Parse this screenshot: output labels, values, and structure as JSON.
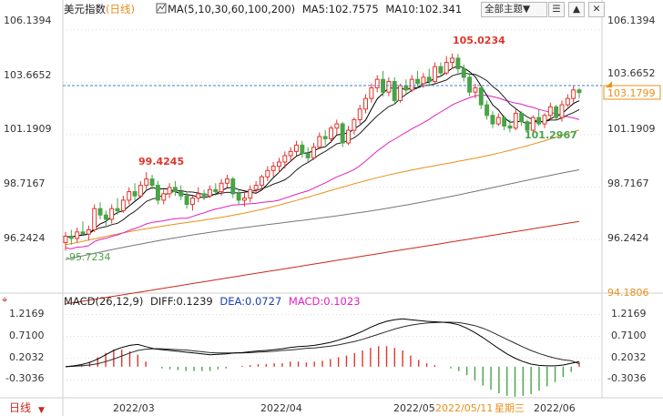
{
  "header": {
    "title": "美元指数",
    "period": "(日线)",
    "ma_label": "MA(5,10,30,60,100,200)",
    "ma5_label": "MA5:102.7575",
    "ma10_label": "MA10:102.341",
    "theme_select": "全部主题▼",
    "icon_list": "list-icon",
    "icon_collapse": "collapse-icon",
    "icon_close": "close-icon"
  },
  "macd_header": {
    "params": "MACD(26,12,9)",
    "diff": "DIFF:0.1239",
    "dea": "DEA:0.0727",
    "macd": "MACD:0.1023"
  },
  "tooltip": {
    "date": "2022/05/11",
    "weekday": "星期三"
  },
  "bottom_left_label": "日线",
  "price_tag": "103.1799",
  "colors": {
    "up": "#e0352b",
    "down": "#47a447",
    "ma5": "#000000",
    "ma10": "#1f1f1f",
    "ma30": "#e020c0",
    "ma60": "#e8901a",
    "ma100": "#777777",
    "ma200": "#c8281e",
    "diff": "#000000",
    "dea": "#2a2a2a",
    "grid": "#d8d8d8"
  },
  "chart_data": [
    {
      "type": "candlestick",
      "title": "美元指数 (日线)",
      "x_tick_labels": [
        "2022/03",
        "2022/04",
        "2022/05",
        "2022/06"
      ],
      "y_tick_labels": [
        "106.1394",
        "103.6652",
        "101.1909",
        "98.7167",
        "96.2424",
        "94.1806"
      ],
      "ylim": [
        93.8,
        106.6
      ],
      "annotations": [
        {
          "label": "105.0234",
          "type": "high",
          "color": "#e0352b"
        },
        {
          "label": "99.4245",
          "type": "high",
          "color": "#e0352b"
        },
        {
          "label": "101.2967",
          "type": "low",
          "color": "#47a447"
        },
        {
          "label": "-95.7234",
          "type": "low",
          "color": "#47a447"
        }
      ],
      "last_price": 103.1799,
      "candles_ohlc": [
        [
          96.1,
          96.6,
          95.72,
          96.4
        ],
        [
          96.4,
          96.7,
          96.0,
          96.3
        ],
        [
          96.3,
          96.8,
          96.1,
          96.6
        ],
        [
          96.6,
          97.1,
          96.4,
          96.5
        ],
        [
          96.5,
          96.9,
          96.2,
          96.7
        ],
        [
          96.7,
          97.9,
          96.6,
          97.7
        ],
        [
          97.7,
          98.0,
          97.2,
          97.4
        ],
        [
          97.4,
          97.6,
          96.9,
          97.2
        ],
        [
          97.2,
          97.9,
          97.0,
          97.7
        ],
        [
          97.7,
          98.2,
          97.4,
          97.6
        ],
        [
          97.6,
          98.3,
          97.5,
          98.1
        ],
        [
          98.1,
          98.7,
          97.9,
          98.5
        ],
        [
          98.5,
          98.9,
          98.1,
          98.3
        ],
        [
          98.3,
          99.0,
          98.2,
          98.8
        ],
        [
          98.8,
          99.42,
          98.6,
          99.1
        ],
        [
          99.1,
          99.3,
          98.6,
          98.8
        ],
        [
          98.8,
          99.0,
          97.9,
          98.1
        ],
        [
          98.1,
          98.6,
          97.9,
          98.4
        ],
        [
          98.4,
          98.9,
          98.2,
          98.7
        ],
        [
          98.7,
          99.0,
          98.3,
          98.5
        ],
        [
          98.5,
          98.8,
          98.1,
          98.3
        ],
        [
          98.3,
          98.5,
          97.7,
          97.9
        ],
        [
          97.9,
          98.3,
          97.6,
          98.2
        ],
        [
          98.2,
          98.7,
          98.0,
          98.4
        ],
        [
          98.4,
          98.6,
          98.1,
          98.3
        ],
        [
          98.3,
          98.8,
          98.2,
          98.6
        ],
        [
          98.6,
          98.9,
          98.3,
          98.5
        ],
        [
          98.5,
          99.1,
          98.3,
          98.9
        ],
        [
          98.9,
          99.3,
          98.7,
          99.1
        ],
        [
          99.1,
          99.2,
          98.2,
          98.4
        ],
        [
          98.4,
          98.6,
          97.9,
          98.1
        ],
        [
          98.1,
          98.5,
          97.8,
          98.2
        ],
        [
          98.2,
          98.8,
          98.0,
          98.6
        ],
        [
          98.6,
          99.0,
          98.4,
          98.8
        ],
        [
          98.8,
          99.3,
          98.6,
          99.2
        ],
        [
          99.2,
          99.7,
          99.0,
          99.5
        ],
        [
          99.5,
          99.9,
          99.2,
          99.7
        ],
        [
          99.7,
          100.1,
          99.4,
          99.9
        ],
        [
          99.9,
          100.4,
          99.6,
          100.2
        ],
        [
          100.2,
          100.6,
          99.9,
          100.4
        ],
        [
          100.4,
          100.9,
          100.2,
          100.7
        ],
        [
          100.7,
          100.9,
          100.1,
          100.3
        ],
        [
          100.3,
          100.6,
          99.9,
          100.1
        ],
        [
          100.1,
          100.8,
          100.0,
          100.6
        ],
        [
          100.6,
          101.3,
          100.5,
          101.1
        ],
        [
          101.1,
          101.4,
          100.7,
          101.0
        ],
        [
          101.0,
          101.6,
          100.8,
          101.5
        ],
        [
          101.5,
          101.9,
          101.2,
          101.7
        ],
        [
          101.7,
          101.8,
          100.6,
          100.8
        ],
        [
          100.8,
          101.6,
          100.7,
          101.4
        ],
        [
          101.4,
          102.0,
          101.2,
          101.9
        ],
        [
          101.9,
          102.6,
          101.7,
          102.4
        ],
        [
          102.4,
          103.1,
          102.2,
          102.9
        ],
        [
          102.9,
          103.6,
          102.7,
          103.4
        ],
        [
          103.4,
          104.0,
          103.2,
          103.8
        ],
        [
          103.8,
          104.2,
          103.0,
          103.2
        ],
        [
          103.2,
          103.9,
          103.0,
          103.7
        ],
        [
          103.7,
          103.9,
          102.6,
          102.8
        ],
        [
          102.8,
          103.6,
          102.7,
          103.5
        ],
        [
          103.5,
          103.8,
          103.1,
          103.3
        ],
        [
          103.3,
          104.0,
          103.2,
          103.8
        ],
        [
          103.8,
          104.2,
          103.4,
          103.6
        ],
        [
          103.6,
          104.1,
          103.4,
          103.9
        ],
        [
          103.9,
          104.3,
          103.5,
          103.7
        ],
        [
          103.7,
          104.6,
          103.6,
          104.4
        ],
        [
          104.4,
          104.6,
          103.9,
          104.1
        ],
        [
          104.1,
          104.9,
          104.0,
          104.6
        ],
        [
          104.6,
          105.02,
          104.3,
          104.8
        ],
        [
          104.8,
          105.0,
          104.1,
          104.3
        ],
        [
          104.3,
          104.5,
          103.7,
          103.9
        ],
        [
          103.9,
          104.1,
          103.0,
          103.2
        ],
        [
          103.2,
          103.6,
          102.9,
          103.4
        ],
        [
          103.4,
          103.5,
          102.4,
          102.6
        ],
        [
          102.6,
          102.8,
          101.9,
          102.1
        ],
        [
          102.1,
          102.3,
          101.5,
          101.7
        ],
        [
          101.7,
          102.2,
          101.6,
          102.0
        ],
        [
          102.0,
          102.1,
          101.4,
          101.6
        ],
        [
          101.6,
          101.9,
          101.3,
          101.5
        ],
        [
          101.5,
          102.4,
          101.4,
          102.2
        ],
        [
          102.2,
          102.3,
          101.6,
          101.8
        ],
        [
          101.8,
          101.9,
          101.3,
          101.4
        ],
        [
          101.4,
          102.1,
          101.3,
          102.0
        ],
        [
          102.0,
          102.4,
          101.6,
          101.7
        ],
        [
          101.7,
          102.2,
          101.5,
          102.1
        ],
        [
          102.1,
          102.7,
          101.9,
          102.5
        ],
        [
          102.5,
          102.6,
          101.9,
          102.0
        ],
        [
          102.0,
          102.8,
          101.8,
          102.6
        ],
        [
          102.6,
          103.1,
          102.5,
          102.9
        ],
        [
          102.9,
          103.5,
          102.7,
          103.3
        ],
        [
          103.3,
          103.4,
          102.9,
          103.18
        ]
      ]
    },
    {
      "type": "line",
      "title": "MACD(26,12,9)",
      "y_tick_labels": [
        "1.2169",
        "0.7100",
        "0.2032",
        "-0.3036"
      ],
      "ylim": [
        -0.62,
        1.38
      ],
      "series": [
        {
          "name": "DIFF",
          "values": [
            0.0,
            0.02,
            0.05,
            0.1,
            0.18,
            0.28,
            0.38,
            0.45,
            0.5,
            0.52,
            0.47,
            0.42,
            0.4,
            0.38,
            0.36,
            0.34,
            0.32,
            0.3,
            0.28,
            0.29,
            0.3,
            0.32,
            0.33,
            0.35,
            0.37,
            0.38,
            0.4,
            0.42,
            0.45,
            0.47,
            0.48,
            0.5,
            0.53,
            0.57,
            0.62,
            0.68,
            0.75,
            0.83,
            0.92,
            1.0,
            1.06,
            1.1,
            1.12,
            1.1,
            1.08,
            1.06,
            1.05,
            1.04,
            1.02,
            0.98,
            0.9,
            0.8,
            0.68,
            0.55,
            0.42,
            0.3,
            0.2,
            0.12,
            0.06,
            0.03,
            0.02,
            0.02,
            0.04,
            0.08,
            0.12
          ]
        },
        {
          "name": "DEA",
          "values": [
            0.0,
            0.01,
            0.02,
            0.04,
            0.07,
            0.12,
            0.18,
            0.25,
            0.32,
            0.38,
            0.41,
            0.42,
            0.42,
            0.41,
            0.4,
            0.39,
            0.37,
            0.35,
            0.33,
            0.32,
            0.32,
            0.32,
            0.32,
            0.33,
            0.34,
            0.35,
            0.36,
            0.38,
            0.39,
            0.41,
            0.43,
            0.44,
            0.46,
            0.48,
            0.51,
            0.55,
            0.59,
            0.64,
            0.7,
            0.76,
            0.82,
            0.88,
            0.93,
            0.97,
            1.0,
            1.02,
            1.03,
            1.04,
            1.04,
            1.03,
            1.0,
            0.96,
            0.9,
            0.82,
            0.73,
            0.64,
            0.55,
            0.46,
            0.38,
            0.31,
            0.25,
            0.2,
            0.16,
            0.14,
            0.07
          ]
        },
        {
          "name": "MACD",
          "values": [
            0.0,
            0.02,
            0.06,
            0.12,
            0.22,
            0.32,
            0.4,
            0.4,
            0.36,
            0.28,
            0.12,
            0.0,
            -0.04,
            -0.06,
            -0.08,
            -0.1,
            -0.1,
            -0.1,
            -0.1,
            -0.06,
            -0.04,
            0.0,
            0.02,
            0.04,
            0.06,
            0.06,
            0.08,
            0.08,
            0.12,
            0.12,
            0.1,
            0.12,
            0.14,
            0.18,
            0.22,
            0.26,
            0.32,
            0.38,
            0.44,
            0.48,
            0.48,
            0.44,
            0.38,
            0.26,
            0.16,
            0.08,
            0.04,
            0.0,
            -0.04,
            -0.1,
            -0.2,
            -0.32,
            -0.44,
            -0.54,
            -0.62,
            -0.68,
            -0.7,
            -0.68,
            -0.64,
            -0.56,
            -0.46,
            -0.36,
            -0.24,
            -0.12,
            0.1
          ]
        }
      ]
    }
  ]
}
